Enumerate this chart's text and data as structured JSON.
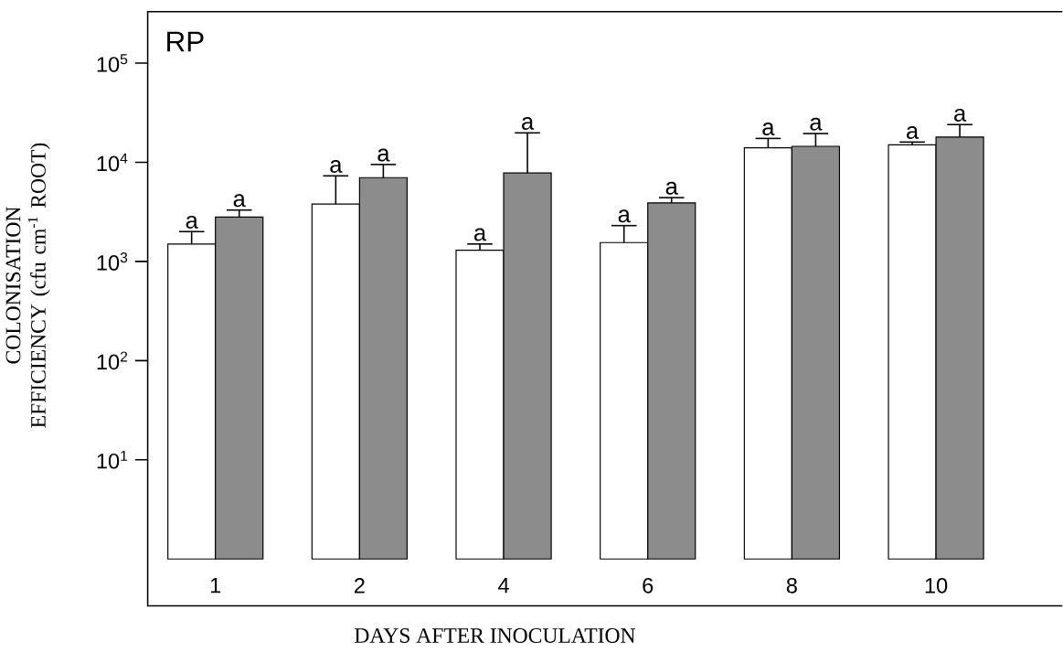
{
  "chart_data": {
    "type": "bar",
    "xlabel": "DAYS AFTER INOCULATION",
    "ylabel": "COLONISATION EFFICIENCY (cfu cm$^{-1}$ ROOT)",
    "categories": [
      "1",
      "2",
      "4",
      "6",
      "8",
      "10"
    ],
    "series": [
      {
        "color": "#ffffff",
        "values": [
          1500,
          3800,
          1300,
          1550,
          14000,
          15000
        ],
        "errors": [
          [
            1500,
            2000
          ],
          [
            3800,
            7300
          ],
          [
            1300,
            1500
          ],
          [
            1550,
            2300
          ],
          [
            14000,
            17400
          ],
          [
            15000,
            16000
          ]
        ]
      },
      {
        "color": "#8c8c8c",
        "values": [
          2800,
          7000,
          7800,
          3900,
          14500,
          18000
        ],
        "errors": [
          [
            2800,
            3300
          ],
          [
            7000,
            9500
          ],
          [
            7800,
            19800
          ],
          [
            3900,
            4400
          ],
          [
            14500,
            19500
          ],
          [
            18000,
            24000
          ]
        ]
      }
    ],
    "log": "y",
    "ylim": [
      1,
      330000
    ],
    "yticks": [
      {
        "value": 10,
        "label": "10$^{1}$"
      },
      {
        "value": 100,
        "label": "10$^{2}$"
      },
      {
        "value": 1000,
        "label": "10$^{3}$"
      },
      {
        "value": 10000,
        "label": "10$^{4}$"
      },
      {
        "value": 100000,
        "label": "10$^{5}$"
      }
    ],
    "annotations": [
      "RP",
      {
        "text": "a",
        "x": "1",
        "y": 2000
      },
      "a",
      {
        "text": "a",
        "x": "2",
        "y": 7300
      },
      "a",
      {
        "text": "a",
        "x": "4",
        "y": 1500
      },
      "a",
      {
        "text": "a",
        "x": "6",
        "y": 2300
      },
      "a",
      "a",
      "a",
      {
        "text": "a",
        "x": "10",
        "y": 16000
      },
      "a"
    ],
    "grid": false
  }
}
